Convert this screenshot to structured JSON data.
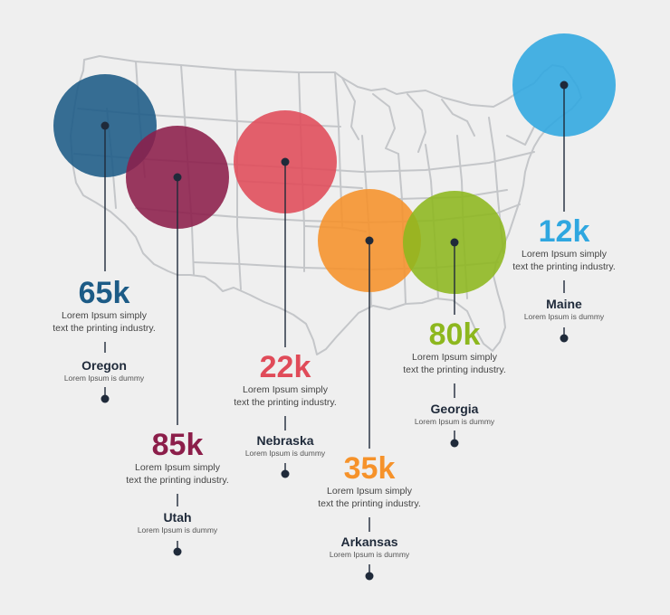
{
  "colors": {
    "background": "#efefef",
    "map_stroke": "#c4c6c9",
    "connector": "#1f2a3a"
  },
  "markers": [
    {
      "id": "oregon",
      "value": "65k",
      "desc_line1": "Lorem Ipsum simply",
      "desc_line2": "text the printing industry.",
      "state": "Oregon",
      "subtext": "Lorem Ipsum is dummy",
      "color": "#1c5b86"
    },
    {
      "id": "utah",
      "value": "85k",
      "desc_line1": "Lorem Ipsum simply",
      "desc_line2": "text the printing industry.",
      "state": "Utah",
      "subtext": "Lorem Ipsum is dummy",
      "color": "#8c1e4a"
    },
    {
      "id": "nebraska",
      "value": "22k",
      "desc_line1": "Lorem Ipsum simply",
      "desc_line2": "text the printing industry.",
      "state": "Nebraska",
      "subtext": "Lorem Ipsum is dummy",
      "color": "#e04b59"
    },
    {
      "id": "arkansas",
      "value": "35k",
      "desc_line1": "Lorem Ipsum simply",
      "desc_line2": "text the printing industry.",
      "state": "Arkansas",
      "subtext": "Lorem Ipsum is dummy",
      "color": "#f6922a"
    },
    {
      "id": "georgia",
      "value": "80k",
      "desc_line1": "Lorem Ipsum simply",
      "desc_line2": "text the printing industry.",
      "state": "Georgia",
      "subtext": "Lorem Ipsum is dummy",
      "color": "#8db71e"
    },
    {
      "id": "maine",
      "value": "12k",
      "desc_line1": "Lorem Ipsum simply",
      "desc_line2": "text the printing industry.",
      "state": "Maine",
      "subtext": "Lorem Ipsum is dummy",
      "color": "#2fa7e0"
    }
  ]
}
